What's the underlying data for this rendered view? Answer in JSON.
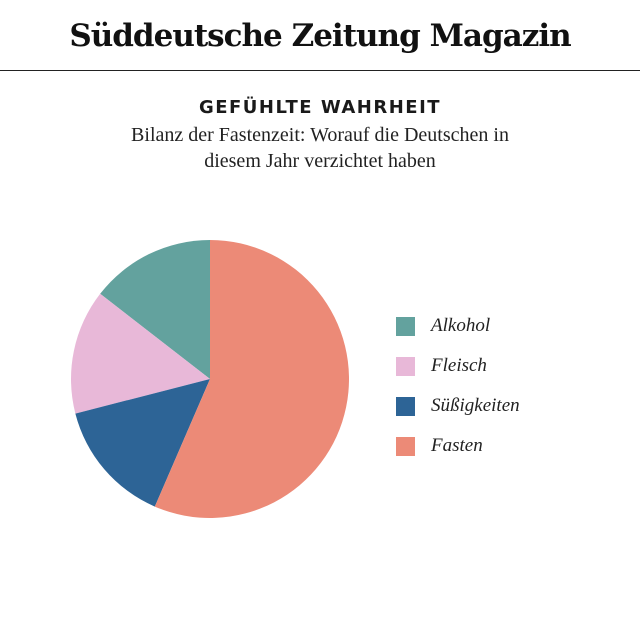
{
  "masthead": {
    "title": "Süddeutsche Zeitung Magazin"
  },
  "chart_data": {
    "type": "pie",
    "title": "GEFÜHLTE WAHRHEIT",
    "subtitle": "Bilanz der Fastenzeit: Worauf die Deutschen in diesem Jahr verzichtet haben",
    "slices": [
      {
        "label": "Alkohol",
        "value": 14.5,
        "color": "#63a29e"
      },
      {
        "label": "Fleisch",
        "value": 14.5,
        "color": "#e8b8d8"
      },
      {
        "label": "Süßigkeiten",
        "value": 14.5,
        "color": "#2d6496"
      },
      {
        "label": "Fasten",
        "value": 56.5,
        "color": "#ec8a77"
      }
    ],
    "start_angle_deg": -90,
    "direction": "counterclockwise",
    "legend_position": "right"
  }
}
